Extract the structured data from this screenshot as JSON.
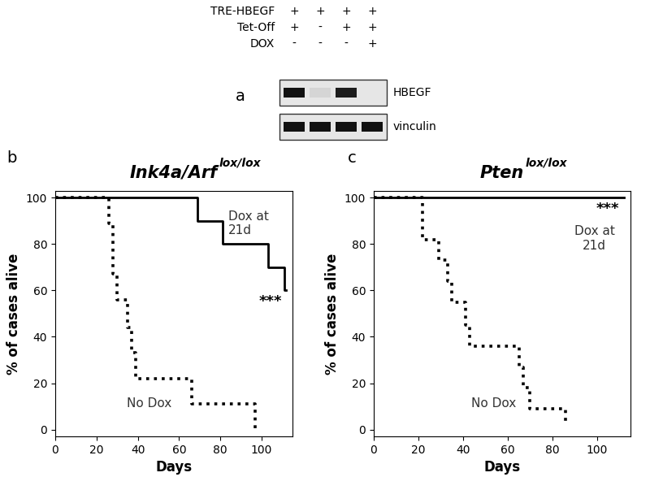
{
  "blot": {
    "panel": "a",
    "conditions": [
      {
        "name": "TRE-HBEGF",
        "lanes": [
          "+",
          "+",
          "+",
          "+"
        ]
      },
      {
        "name": "Tet-Off",
        "lanes": [
          "+",
          "-",
          "+",
          "+"
        ]
      },
      {
        "name": "DOX",
        "lanes": [
          "-",
          "-",
          "-",
          "+"
        ]
      }
    ],
    "bands": [
      {
        "name": "HBEGF",
        "intensity": [
          1,
          0.08,
          0.95,
          0
        ]
      },
      {
        "name": "vinculin",
        "intensity": [
          1,
          1,
          1,
          1
        ]
      }
    ]
  },
  "chart_data": [
    {
      "panel": "b",
      "type": "step",
      "title": "Ink4a/Arf lox/lox",
      "x_label": "Days",
      "y_label": "% of cases alive",
      "xlim": [
        0,
        115
      ],
      "ylim": [
        -3,
        103
      ],
      "xticks": [
        0,
        20,
        40,
        60,
        80,
        100
      ],
      "yticks": [
        0,
        20,
        40,
        60,
        80,
        100
      ],
      "grid": false,
      "series": [
        {
          "name": "Dox at\n21d",
          "color": "#000000",
          "line_style": "solid",
          "x": [
            0,
            69,
            81,
            103,
            111,
            112
          ],
          "values": [
            100,
            90,
            80,
            70,
            60,
            60
          ]
        },
        {
          "name": "No Dox",
          "color": "#000000",
          "line_style": "dotted",
          "x": [
            0,
            26,
            28,
            30,
            35,
            37,
            39,
            66,
            97
          ],
          "values": [
            100,
            89,
            67,
            56,
            44,
            33,
            22,
            11,
            0
          ]
        }
      ],
      "annotations": [
        {
          "text": "***"
        }
      ]
    },
    {
      "panel": "c",
      "type": "step",
      "title": "Pten lox/lox",
      "x_label": "Days",
      "y_label": "% of cases alive",
      "xlim": [
        0,
        115
      ],
      "ylim": [
        -3,
        103
      ],
      "xticks": [
        0,
        20,
        40,
        60,
        80,
        100
      ],
      "yticks": [
        0,
        20,
        40,
        60,
        80,
        100
      ],
      "grid": false,
      "series": [
        {
          "name": "Dox at\n21d",
          "color": "#000000",
          "line_style": "solid",
          "x": [
            0,
            112
          ],
          "values": [
            100,
            100
          ]
        },
        {
          "name": "No Dox",
          "color": "#000000",
          "line_style": "dotted",
          "x": [
            0,
            22,
            29,
            33,
            35,
            41,
            43,
            65,
            67,
            70,
            86
          ],
          "values": [
            100,
            82,
            73,
            64,
            55,
            45,
            36,
            27,
            18,
            9,
            3
          ]
        }
      ],
      "annotations": [
        {
          "text": "***"
        }
      ]
    }
  ]
}
